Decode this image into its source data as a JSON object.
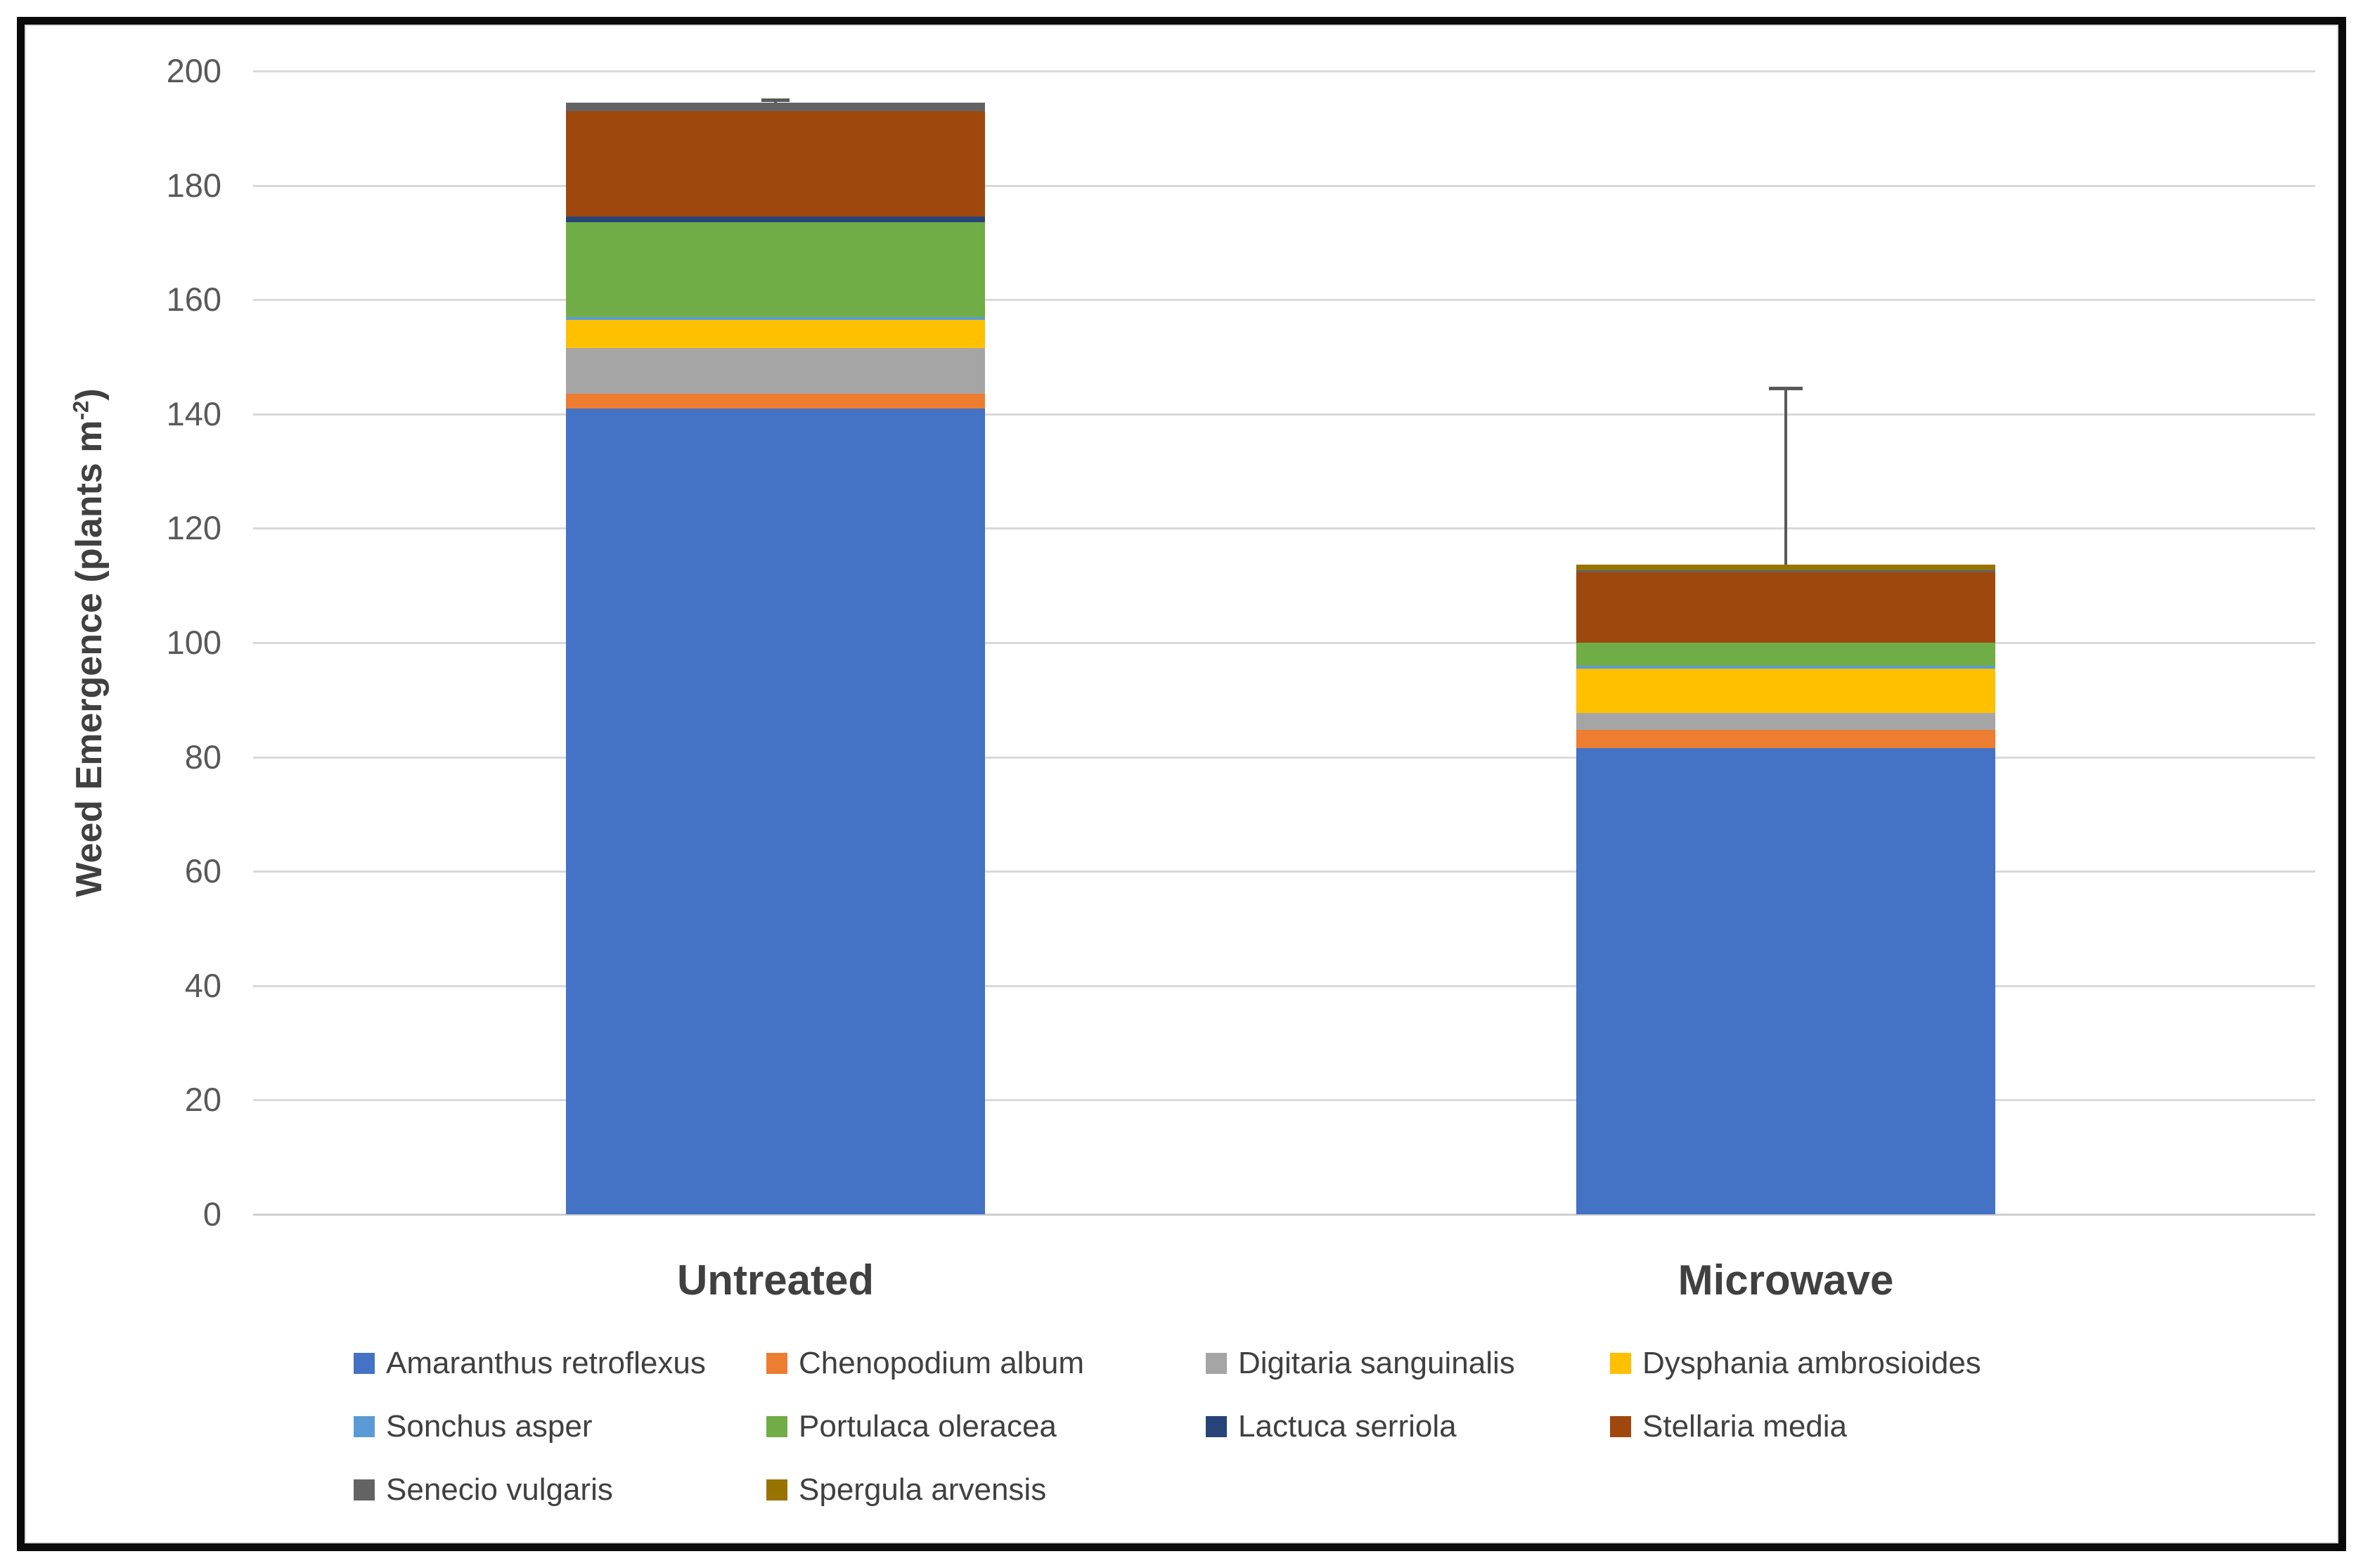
{
  "chart_data": {
    "type": "bar",
    "stacked": true,
    "title": "",
    "xlabel": "",
    "ylabel": {
      "prefix": "Weed Emergence (plants m",
      "superscript": "-2",
      "suffix": ")"
    },
    "categories": [
      "Untreated",
      "Microwave"
    ],
    "y_axis": {
      "min": 0,
      "max": 200,
      "step": 20,
      "ticks": [
        0,
        20,
        40,
        60,
        80,
        100,
        120,
        140,
        160,
        180,
        200
      ]
    },
    "grid": true,
    "gridline_color": "#D9D9D9",
    "legend_position": "bottom",
    "series": [
      {
        "name": "Amaranthus retroflexus",
        "color": "#4472C4",
        "values": [
          141.0,
          81.5
        ]
      },
      {
        "name": "Chenopodium album",
        "color": "#ED7D31",
        "values": [
          2.5,
          3.2
        ]
      },
      {
        "name": "Digitaria sanguinalis",
        "color": "#A5A5A5",
        "values": [
          8.0,
          3.0
        ]
      },
      {
        "name": "Dysphania ambrosioides",
        "color": "#FFC000",
        "values": [
          5.0,
          7.7
        ]
      },
      {
        "name": "Sonchus asper",
        "color": "#5B9BD5",
        "values": [
          0.5,
          0.6
        ]
      },
      {
        "name": "Portulaca oleracea",
        "color": "#70AD47",
        "values": [
          16.5,
          4.0
        ]
      },
      {
        "name": "Lactuca serriola",
        "color": "#264478",
        "values": [
          1.0,
          0.0
        ]
      },
      {
        "name": "Stellaria media",
        "color": "#9E480E",
        "values": [
          18.5,
          12.3
        ]
      },
      {
        "name": "Senecio vulgaris",
        "color": "#636363",
        "values": [
          1.5,
          0.4
        ]
      },
      {
        "name": "Spergula arvensis",
        "color": "#997300",
        "values": [
          0.0,
          0.9
        ]
      }
    ],
    "bar_totals_approx": [
      194.5,
      113.6
    ],
    "error_bars": {
      "type": "upper",
      "color": "#595959",
      "values": [
        0.5,
        30.9
      ]
    }
  },
  "colors": {
    "text": "#404040",
    "tick_text": "#595959",
    "gridline": "#D9D9D9",
    "frame_border": "#0A0A0A",
    "chart_border": "#D9D9D9",
    "error_bar": "#595959"
  }
}
